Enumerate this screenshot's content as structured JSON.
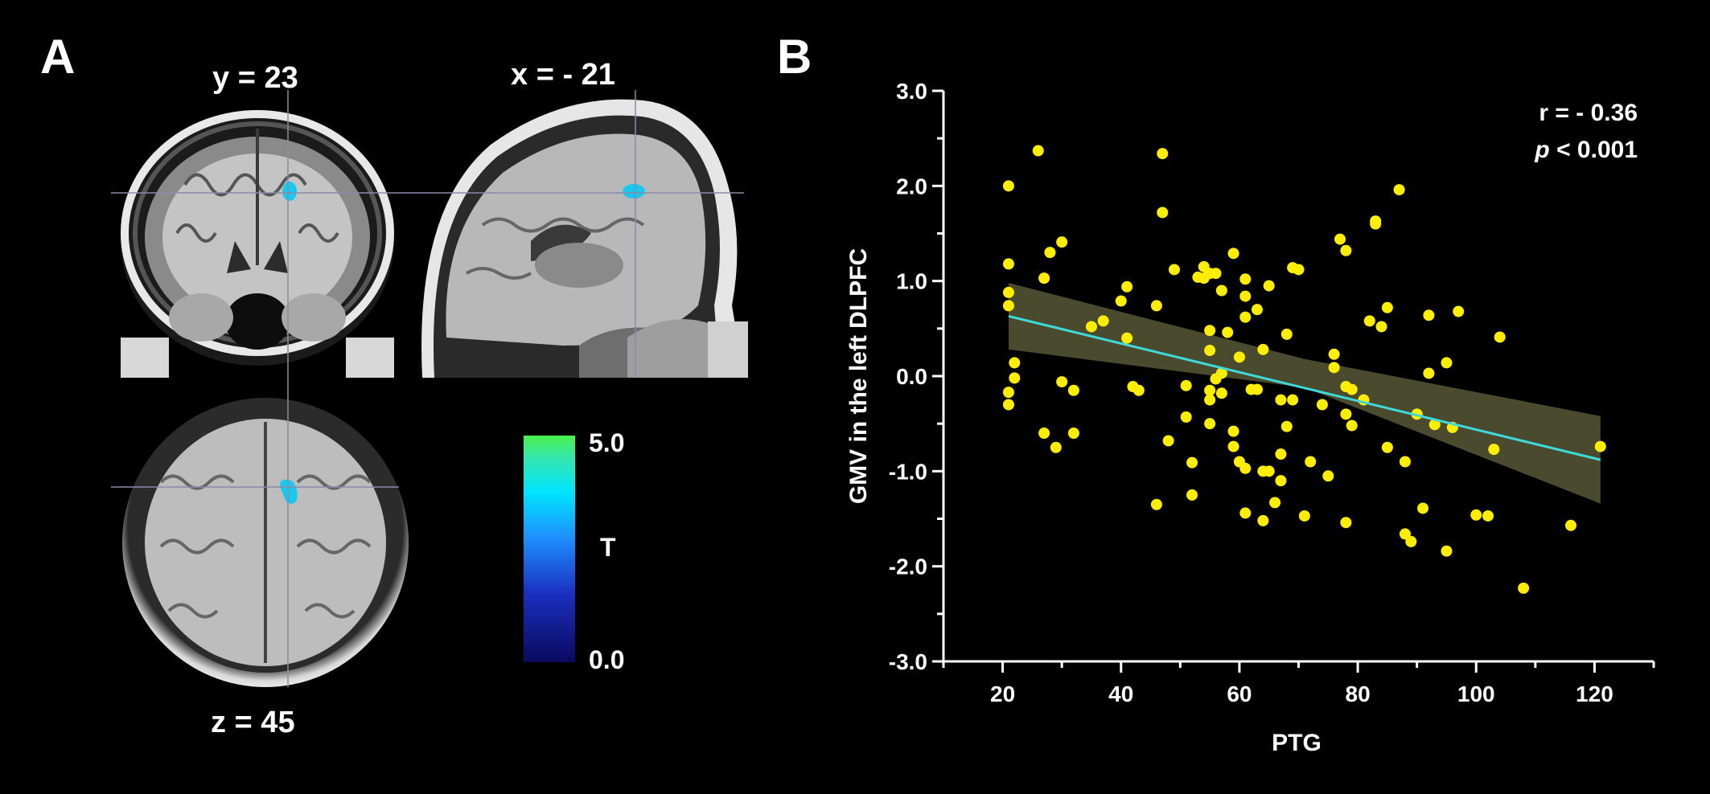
{
  "panel_a": {
    "letter": "A",
    "slices": {
      "coronal": "y = 23",
      "sagittal": "x = - 21",
      "axial": "z = 45"
    },
    "colorbar": {
      "max": "5.0",
      "min": "0.0",
      "label": "T",
      "colors": [
        "#0a0a5e",
        "#1a2fbf",
        "#1e90ff",
        "#00e5ff",
        "#35e6b0",
        "#4cf04a"
      ]
    },
    "cluster_color": "#19c8f0"
  },
  "panel_b": {
    "letter": "B",
    "stats": {
      "r_text": "r = - 0.36",
      "p_symbol": "p",
      "p_rest": " < 0.001"
    }
  },
  "chart_data": {
    "type": "scatter",
    "title": "",
    "xlabel": "PTG",
    "ylabel": "GMV in the left DLPFC",
    "xlim": [
      10,
      130
    ],
    "ylim": [
      -3.0,
      3.0
    ],
    "xticks": [
      20,
      40,
      60,
      80,
      100,
      120
    ],
    "yticks": [
      -3.0,
      -2.0,
      -1.0,
      0.0,
      1.0,
      2.0,
      3.0
    ],
    "xtick_labels": [
      "20",
      "40",
      "60",
      "80",
      "100",
      "120"
    ],
    "ytick_labels": [
      "-3.0",
      "-2.0",
      "-1.0",
      "0.0",
      "1.0",
      "2.0",
      "3.0"
    ],
    "grid": false,
    "point_color": "#ffee00",
    "fit_line_color": "#3fd9d9",
    "ci_band_color": "#4a4a2e",
    "fit_line": {
      "x": [
        21,
        121
      ],
      "y": [
        0.63,
        -0.88
      ]
    },
    "ci_band": {
      "x": [
        21,
        71,
        121
      ],
      "upper": [
        0.98,
        0.18,
        -0.42
      ],
      "lower": [
        0.28,
        -0.12,
        -1.34
      ]
    },
    "points": [
      [
        21,
        2.0
      ],
      [
        21,
        1.18
      ],
      [
        21,
        0.88
      ],
      [
        21,
        0.74
      ],
      [
        21,
        -0.17
      ],
      [
        21,
        -0.3
      ],
      [
        22,
        0.14
      ],
      [
        22,
        -0.02
      ],
      [
        26,
        2.37
      ],
      [
        27,
        1.03
      ],
      [
        27,
        -0.6
      ],
      [
        28,
        1.3
      ],
      [
        29,
        -0.75
      ],
      [
        30,
        1.41
      ],
      [
        30,
        -0.06
      ],
      [
        32,
        -0.15
      ],
      [
        32,
        -0.6
      ],
      [
        35,
        0.52
      ],
      [
        37,
        0.58
      ],
      [
        40,
        0.79
      ],
      [
        41,
        0.94
      ],
      [
        41,
        0.4
      ],
      [
        42,
        -0.11
      ],
      [
        43,
        -0.15
      ],
      [
        46,
        0.74
      ],
      [
        46,
        -1.35
      ],
      [
        47,
        2.34
      ],
      [
        47,
        1.72
      ],
      [
        48,
        -0.68
      ],
      [
        49,
        1.12
      ],
      [
        51,
        -0.1
      ],
      [
        51,
        -0.43
      ],
      [
        52,
        -0.91
      ],
      [
        52,
        -1.25
      ],
      [
        53,
        1.04
      ],
      [
        54,
        1.15
      ],
      [
        54,
        1.03
      ],
      [
        55,
        1.08
      ],
      [
        55,
        0.48
      ],
      [
        55,
        0.27
      ],
      [
        55,
        -0.15
      ],
      [
        55,
        -0.25
      ],
      [
        55,
        -0.5
      ],
      [
        56,
        1.08
      ],
      [
        56,
        -0.03
      ],
      [
        57,
        0.9
      ],
      [
        57,
        0.03
      ],
      [
        57,
        -0.18
      ],
      [
        58,
        0.46
      ],
      [
        59,
        1.29
      ],
      [
        59,
        -0.58
      ],
      [
        59,
        -0.74
      ],
      [
        60,
        0.2
      ],
      [
        60,
        -0.9
      ],
      [
        61,
        1.02
      ],
      [
        61,
        0.84
      ],
      [
        61,
        0.62
      ],
      [
        61,
        -0.97
      ],
      [
        61,
        -1.44
      ],
      [
        62,
        -0.14
      ],
      [
        63,
        0.7
      ],
      [
        63,
        -0.14
      ],
      [
        64,
        0.28
      ],
      [
        64,
        -1.0
      ],
      [
        64,
        -1.52
      ],
      [
        65,
        0.95
      ],
      [
        65,
        -1.0
      ],
      [
        66,
        -1.33
      ],
      [
        67,
        -0.25
      ],
      [
        67,
        -0.82
      ],
      [
        67,
        -1.1
      ],
      [
        68,
        0.44
      ],
      [
        68,
        -0.53
      ],
      [
        69,
        1.14
      ],
      [
        69,
        -0.25
      ],
      [
        70,
        1.12
      ],
      [
        71,
        -1.47
      ],
      [
        72,
        -0.9
      ],
      [
        74,
        -0.3
      ],
      [
        75,
        -1.05
      ],
      [
        76,
        0.09
      ],
      [
        76,
        0.23
      ],
      [
        77,
        1.44
      ],
      [
        78,
        1.32
      ],
      [
        78,
        -0.11
      ],
      [
        78,
        -0.4
      ],
      [
        78,
        -1.54
      ],
      [
        79,
        -0.14
      ],
      [
        79,
        -0.52
      ],
      [
        81,
        -0.25
      ],
      [
        82,
        0.58
      ],
      [
        83,
        1.6
      ],
      [
        83,
        1.63
      ],
      [
        84,
        0.52
      ],
      [
        85,
        0.72
      ],
      [
        85,
        -0.75
      ],
      [
        87,
        1.96
      ],
      [
        88,
        -0.9
      ],
      [
        88,
        -1.66
      ],
      [
        89,
        -1.74
      ],
      [
        90,
        -0.4
      ],
      [
        91,
        -1.39
      ],
      [
        92,
        0.64
      ],
      [
        92,
        0.03
      ],
      [
        93,
        -0.51
      ],
      [
        95,
        0.14
      ],
      [
        95,
        -1.84
      ],
      [
        96,
        -0.54
      ],
      [
        97,
        0.68
      ],
      [
        100,
        -1.46
      ],
      [
        102,
        -1.47
      ],
      [
        103,
        -0.77
      ],
      [
        104,
        0.41
      ],
      [
        108,
        -2.23
      ],
      [
        116,
        -1.57
      ],
      [
        121,
        -0.74
      ]
    ]
  }
}
